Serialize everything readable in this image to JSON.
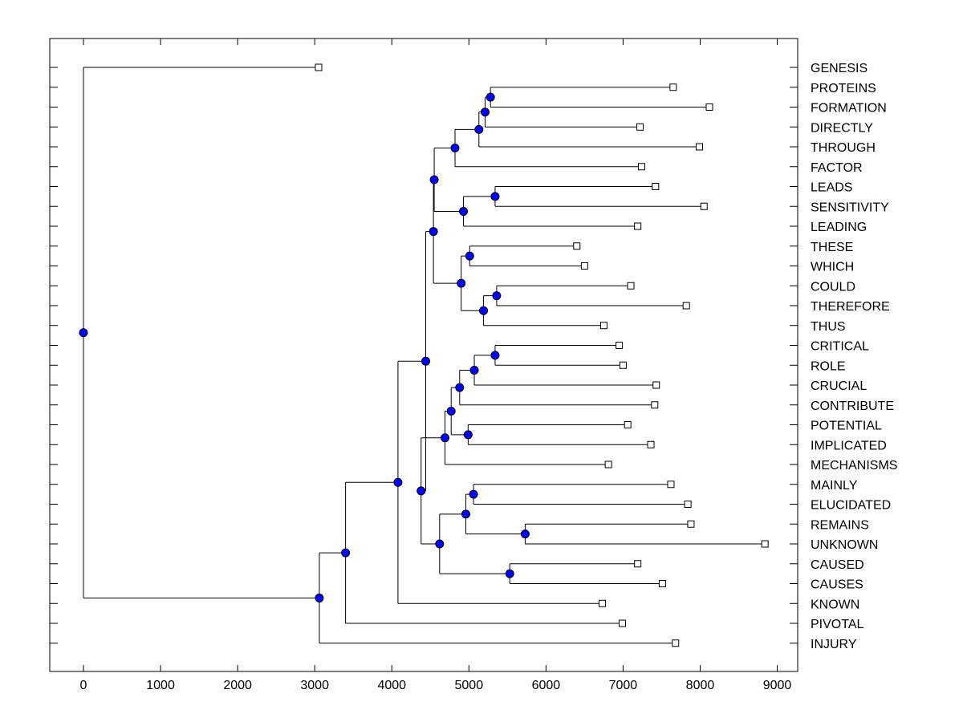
{
  "chart_data": {
    "type": "dendrogram",
    "title": "",
    "xlabel": "",
    "ylabel": "",
    "xlim": [
      -450,
      9300
    ],
    "xticks": [
      0,
      1000,
      2000,
      3000,
      4000,
      5000,
      6000,
      7000,
      8000,
      9000
    ],
    "xtick_labels": [
      "0",
      "1000",
      "2000",
      "3000",
      "4000",
      "5000",
      "6000",
      "7000",
      "8000",
      "9000"
    ],
    "leaves": [
      {
        "label": "GENESIS",
        "x": 3050
      },
      {
        "label": "PROTEINS",
        "x": 7650
      },
      {
        "label": "FORMATION",
        "x": 8120
      },
      {
        "label": "DIRECTLY",
        "x": 7220
      },
      {
        "label": "THROUGH",
        "x": 7990
      },
      {
        "label": "FACTOR",
        "x": 7240
      },
      {
        "label": "LEADS",
        "x": 7420
      },
      {
        "label": "SENSITIVITY",
        "x": 8050
      },
      {
        "label": "LEADING",
        "x": 7190
      },
      {
        "label": "THESE",
        "x": 6400
      },
      {
        "label": "WHICH",
        "x": 6500
      },
      {
        "label": "COULD",
        "x": 7100
      },
      {
        "label": "THEREFORE",
        "x": 7820
      },
      {
        "label": "THUS",
        "x": 6750
      },
      {
        "label": "CRITICAL",
        "x": 6950
      },
      {
        "label": "ROLE",
        "x": 7000
      },
      {
        "label": "CRUCIAL",
        "x": 7430
      },
      {
        "label": "CONTRIBUTE",
        "x": 7410
      },
      {
        "label": "POTENTIAL",
        "x": 7060
      },
      {
        "label": "IMPLICATED",
        "x": 7360
      },
      {
        "label": "MECHANISMS",
        "x": 6810
      },
      {
        "label": "MAINLY",
        "x": 7620
      },
      {
        "label": "ELUCIDATED",
        "x": 7840
      },
      {
        "label": "REMAINS",
        "x": 7880
      },
      {
        "label": "UNKNOWN",
        "x": 8840
      },
      {
        "label": "CAUSED",
        "x": 7190
      },
      {
        "label": "CAUSES",
        "x": 7510
      },
      {
        "label": "KNOWN",
        "x": 6730
      },
      {
        "label": "PIVOTAL",
        "x": 6990
      },
      {
        "label": "INJURY",
        "x": 7680
      }
    ],
    "merges": [
      {
        "id": "n_pf",
        "x": 5280,
        "children": [
          "L1",
          "L2"
        ]
      },
      {
        "id": "n_pfd",
        "x": 5210,
        "children": [
          "n_pf",
          "L3"
        ]
      },
      {
        "id": "n_pfdt",
        "x": 5130,
        "children": [
          "n_pfd",
          "L4"
        ]
      },
      {
        "id": "n_A",
        "x": 4820,
        "children": [
          "n_pfdt",
          "L5"
        ]
      },
      {
        "id": "n_ls",
        "x": 5340,
        "children": [
          "L6",
          "L7"
        ]
      },
      {
        "id": "n_B",
        "x": 4930,
        "children": [
          "n_ls",
          "L8"
        ]
      },
      {
        "id": "n_AB",
        "x": 4550,
        "children": [
          "n_A",
          "n_B"
        ]
      },
      {
        "id": "n_tw",
        "x": 5010,
        "children": [
          "L9",
          "L10"
        ]
      },
      {
        "id": "n_ct",
        "x": 5360,
        "children": [
          "L11",
          "L12"
        ]
      },
      {
        "id": "n_C2",
        "x": 5190,
        "children": [
          "n_ct",
          "L13"
        ]
      },
      {
        "id": "n_C",
        "x": 4900,
        "children": [
          "n_tw",
          "n_C2"
        ]
      },
      {
        "id": "n_top",
        "x": 4540,
        "children": [
          "n_AB",
          "n_C"
        ]
      },
      {
        "id": "n_cr",
        "x": 5340,
        "children": [
          "L14",
          "L15"
        ]
      },
      {
        "id": "n_crc",
        "x": 5070,
        "children": [
          "n_cr",
          "L16"
        ]
      },
      {
        "id": "n_crcc",
        "x": 4880,
        "children": [
          "n_crc",
          "L17"
        ]
      },
      {
        "id": "n_pi",
        "x": 4990,
        "children": [
          "L18",
          "L19"
        ]
      },
      {
        "id": "n_D1",
        "x": 4770,
        "children": [
          "n_crcc",
          "n_pi"
        ]
      },
      {
        "id": "n_D",
        "x": 4690,
        "children": [
          "n_D1",
          "L20"
        ]
      },
      {
        "id": "n_me",
        "x": 5060,
        "children": [
          "L21",
          "L22"
        ]
      },
      {
        "id": "n_ru",
        "x": 5730,
        "children": [
          "L23",
          "L24"
        ]
      },
      {
        "id": "n_E1",
        "x": 4960,
        "children": [
          "n_me",
          "n_ru"
        ]
      },
      {
        "id": "n_cc",
        "x": 5530,
        "children": [
          "L25",
          "L26"
        ]
      },
      {
        "id": "n_E",
        "x": 4620,
        "children": [
          "n_E1",
          "n_cc"
        ]
      },
      {
        "id": "n_DE",
        "x": 4380,
        "children": [
          "n_D",
          "n_E"
        ]
      },
      {
        "id": "n_big",
        "x": 4440,
        "children": [
          "n_top",
          "n_DE"
        ]
      },
      {
        "id": "n_k",
        "x": 4080,
        "children": [
          "n_big",
          "L27"
        ]
      },
      {
        "id": "n_kp",
        "x": 3400,
        "children": [
          "n_k",
          "L28"
        ]
      },
      {
        "id": "n_kpi",
        "x": 3060,
        "children": [
          "n_kp",
          "L29"
        ]
      },
      {
        "id": "n_root",
        "x": 0,
        "children": [
          "L0",
          "n_kpi"
        ]
      }
    ],
    "colors": {
      "node_fill": "#0000ff",
      "node_stroke": "#000000",
      "line": "#000000",
      "leaf_marker_fill": "#ffffff",
      "axes": "#000000"
    },
    "grid": false
  }
}
